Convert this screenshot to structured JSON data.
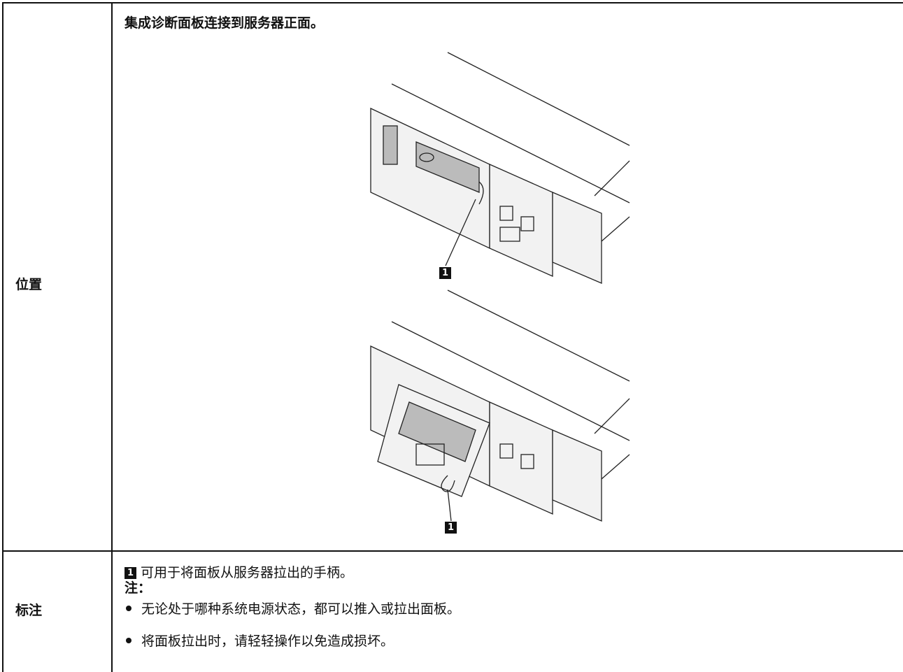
{
  "table": {
    "rows": [
      {
        "label": "位置",
        "text": "集成诊断面板连接到服务器正面。",
        "callouts": [
          "1",
          "1"
        ]
      },
      {
        "label": "标注",
        "callout": "1",
        "text": "可用于将面板从服务器拉出的手柄。",
        "note_label": "注：",
        "bullets": [
          "无论处于哪种系统电源状态，都可以推入或拉出面板。",
          "将面板拉出时，请轻轻操作以免造成损坏。"
        ]
      }
    ]
  }
}
